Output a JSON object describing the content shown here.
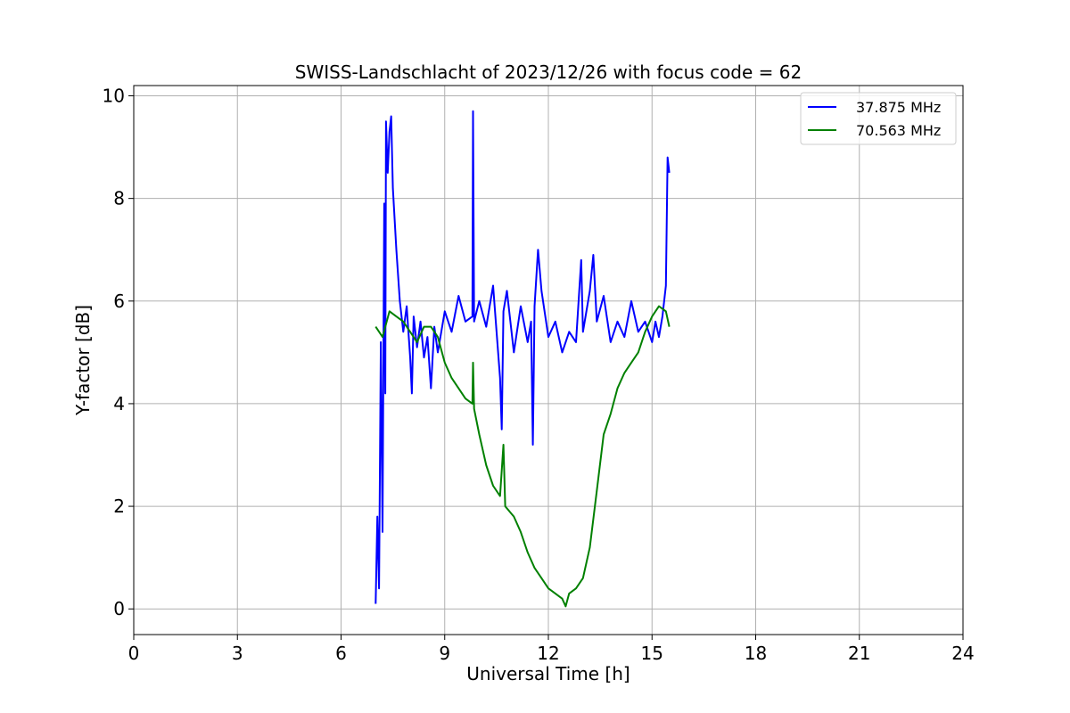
{
  "chart_data": {
    "type": "line",
    "title": "SWISS-Landschlacht of 2023/12/26 with focus code = 62",
    "xlabel": "Universal Time [h]",
    "ylabel": "Y-factor [dB]",
    "xlim": [
      0,
      24
    ],
    "ylim": [
      -0.5,
      10.2
    ],
    "xticks": [
      0,
      3,
      6,
      9,
      12,
      15,
      18,
      21,
      24
    ],
    "yticks": [
      0,
      2,
      4,
      6,
      8,
      10
    ],
    "grid": true,
    "legend_position": "top-right",
    "series": [
      {
        "name": "37.875 MHz",
        "color": "#0000ff",
        "points": [
          [
            7.0,
            0.1
          ],
          [
            7.05,
            1.8
          ],
          [
            7.1,
            0.4
          ],
          [
            7.15,
            5.2
          ],
          [
            7.2,
            1.5
          ],
          [
            7.25,
            7.9
          ],
          [
            7.28,
            4.2
          ],
          [
            7.3,
            9.5
          ],
          [
            7.35,
            8.5
          ],
          [
            7.4,
            9.3
          ],
          [
            7.45,
            9.6
          ],
          [
            7.5,
            8.2
          ],
          [
            7.6,
            7.0
          ],
          [
            7.7,
            6.0
          ],
          [
            7.8,
            5.4
          ],
          [
            7.9,
            5.9
          ],
          [
            8.0,
            4.9
          ],
          [
            8.05,
            4.2
          ],
          [
            8.1,
            5.7
          ],
          [
            8.2,
            5.1
          ],
          [
            8.3,
            5.6
          ],
          [
            8.4,
            4.9
          ],
          [
            8.5,
            5.3
          ],
          [
            8.6,
            4.3
          ],
          [
            8.7,
            5.5
          ],
          [
            8.8,
            5.0
          ],
          [
            9.0,
            5.8
          ],
          [
            9.2,
            5.4
          ],
          [
            9.4,
            6.1
          ],
          [
            9.6,
            5.6
          ],
          [
            9.8,
            5.7
          ],
          [
            9.82,
            9.7
          ],
          [
            9.85,
            5.6
          ],
          [
            10.0,
            6.0
          ],
          [
            10.2,
            5.5
          ],
          [
            10.4,
            6.3
          ],
          [
            10.5,
            5.4
          ],
          [
            10.6,
            4.5
          ],
          [
            10.65,
            3.5
          ],
          [
            10.7,
            5.8
          ],
          [
            10.8,
            6.2
          ],
          [
            11.0,
            5.0
          ],
          [
            11.2,
            5.9
          ],
          [
            11.4,
            5.2
          ],
          [
            11.5,
            5.6
          ],
          [
            11.55,
            3.2
          ],
          [
            11.6,
            5.9
          ],
          [
            11.7,
            7.0
          ],
          [
            11.8,
            6.2
          ],
          [
            12.0,
            5.3
          ],
          [
            12.2,
            5.6
          ],
          [
            12.4,
            5.0
          ],
          [
            12.6,
            5.4
          ],
          [
            12.8,
            5.2
          ],
          [
            12.95,
            6.8
          ],
          [
            13.0,
            5.4
          ],
          [
            13.2,
            6.2
          ],
          [
            13.3,
            6.9
          ],
          [
            13.4,
            5.6
          ],
          [
            13.6,
            6.1
          ],
          [
            13.8,
            5.2
          ],
          [
            14.0,
            5.6
          ],
          [
            14.2,
            5.3
          ],
          [
            14.4,
            6.0
          ],
          [
            14.6,
            5.4
          ],
          [
            14.8,
            5.6
          ],
          [
            15.0,
            5.2
          ],
          [
            15.1,
            5.6
          ],
          [
            15.2,
            5.3
          ],
          [
            15.3,
            5.7
          ],
          [
            15.4,
            6.3
          ],
          [
            15.45,
            8.8
          ],
          [
            15.5,
            8.5
          ]
        ]
      },
      {
        "name": "70.563 MHz",
        "color": "#008000",
        "points": [
          [
            7.0,
            5.5
          ],
          [
            7.2,
            5.3
          ],
          [
            7.4,
            5.8
          ],
          [
            7.6,
            5.7
          ],
          [
            7.8,
            5.6
          ],
          [
            8.0,
            5.4
          ],
          [
            8.2,
            5.2
          ],
          [
            8.4,
            5.5
          ],
          [
            8.6,
            5.5
          ],
          [
            8.8,
            5.3
          ],
          [
            9.0,
            4.8
          ],
          [
            9.2,
            4.5
          ],
          [
            9.4,
            4.3
          ],
          [
            9.6,
            4.1
          ],
          [
            9.8,
            4.0
          ],
          [
            9.82,
            4.8
          ],
          [
            9.85,
            3.9
          ],
          [
            10.0,
            3.4
          ],
          [
            10.2,
            2.8
          ],
          [
            10.4,
            2.4
          ],
          [
            10.6,
            2.2
          ],
          [
            10.7,
            3.2
          ],
          [
            10.75,
            2.0
          ],
          [
            11.0,
            1.8
          ],
          [
            11.2,
            1.5
          ],
          [
            11.4,
            1.1
          ],
          [
            11.6,
            0.8
          ],
          [
            11.8,
            0.6
          ],
          [
            12.0,
            0.4
          ],
          [
            12.2,
            0.3
          ],
          [
            12.4,
            0.2
          ],
          [
            12.5,
            0.05
          ],
          [
            12.6,
            0.3
          ],
          [
            12.8,
            0.4
          ],
          [
            13.0,
            0.6
          ],
          [
            13.2,
            1.2
          ],
          [
            13.4,
            2.3
          ],
          [
            13.6,
            3.4
          ],
          [
            13.8,
            3.8
          ],
          [
            14.0,
            4.3
          ],
          [
            14.2,
            4.6
          ],
          [
            14.4,
            4.8
          ],
          [
            14.6,
            5.0
          ],
          [
            14.8,
            5.4
          ],
          [
            15.0,
            5.7
          ],
          [
            15.2,
            5.9
          ],
          [
            15.4,
            5.8
          ],
          [
            15.5,
            5.5
          ]
        ]
      }
    ]
  }
}
